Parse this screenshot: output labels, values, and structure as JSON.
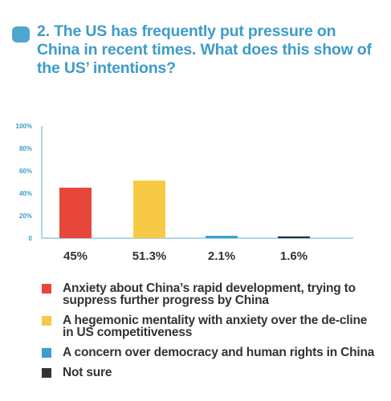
{
  "question": {
    "text": "2. The US has frequently put pressure on China in recent times. What does this show of the US’ intentions?"
  },
  "colors": {
    "accent": "#4ea6cf",
    "title": "#3d9cc9",
    "axis": "#8ecbe6",
    "tick_text": "#3d9cc9",
    "value_text": "#333333"
  },
  "legend": [
    {
      "label": "Anxiety about China’s rapid development, trying to suppress further progress by China",
      "color": "#e6473a"
    },
    {
      "label": "A hegemonic mentality with anxiety over the de-cline in US competitiveness",
      "color": "#f7ca45"
    },
    {
      "label": "A concern over democracy and human rights in China",
      "color": "#3d9dd0"
    },
    {
      "label": "Not sure",
      "color": "#333333"
    }
  ],
  "chart_data": {
    "type": "bar",
    "categories": [
      "Anxiety about China’s rapid development, trying to suppress further progress by China",
      "A hegemonic mentality with anxiety over the de-cline in US competitiveness",
      "A concern over democracy and human rights in China",
      "Not sure"
    ],
    "values": [
      45,
      51.3,
      2.1,
      1.6
    ],
    "value_labels": [
      "45%",
      "51.3%",
      "2.1%",
      "1.6%"
    ],
    "colors": [
      "#e6473a",
      "#f7ca45",
      "#3d9dd0",
      "#333333"
    ],
    "yticks": [
      "0",
      "20%",
      "40%",
      "60%",
      "80%",
      "100%"
    ],
    "ylim": [
      0,
      100
    ],
    "grid": false,
    "legend_position": "bottom"
  }
}
